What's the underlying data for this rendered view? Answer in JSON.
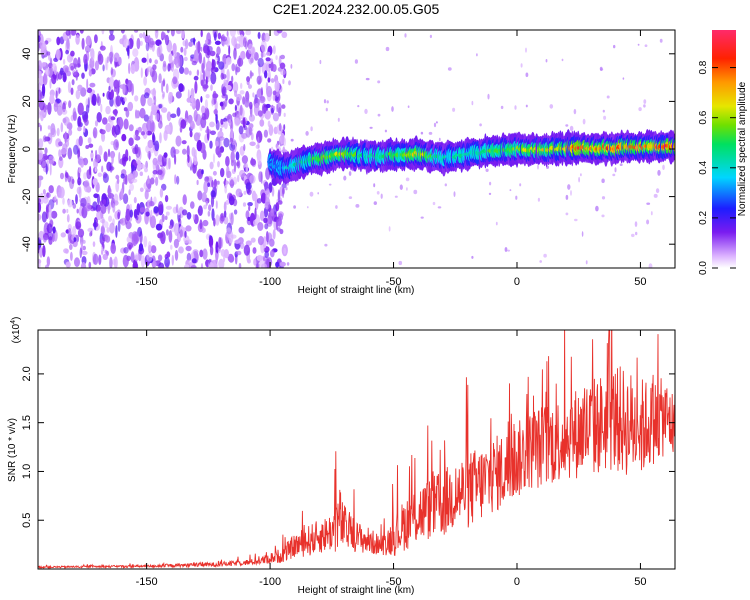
{
  "figure_title": "C2E1.2024.232.00.05.G05",
  "colorbar": {
    "label": "Normalized spectral amplitude",
    "ticks": [
      "0.0",
      "0.2",
      "0.4",
      "0.6",
      "0.8"
    ],
    "tick_values": [
      0.0,
      0.2,
      0.4,
      0.6,
      0.8
    ],
    "range": [
      0,
      0.95
    ]
  },
  "chart_data": [
    {
      "type": "heatmap",
      "title": "",
      "xlabel": "Height of straight line (km)",
      "ylabel": "Frequency (Hz)",
      "xlim": [
        -194,
        64
      ],
      "ylim": [
        -50,
        50
      ],
      "xticks": [
        -150,
        -100,
        -50,
        0,
        50
      ],
      "xtick_labels": [
        "-150",
        "-100",
        "-50",
        "0",
        "50"
      ],
      "yticks": [
        -40,
        -20,
        0,
        20,
        40
      ],
      "ytick_labels": [
        "-40",
        "-20",
        "0",
        "20",
        "40"
      ],
      "noise_region_x": [
        -194,
        -100
      ],
      "signal_track": {
        "x": [
          -100,
          -95,
          -90,
          -85,
          -80,
          -75,
          -70,
          -65,
          -60,
          -55,
          -50,
          -45,
          -40,
          -35,
          -30,
          -25,
          -20,
          -15,
          -10,
          -5,
          0,
          5,
          10,
          15,
          20,
          25,
          30,
          35,
          40,
          45,
          50,
          55,
          60,
          64
        ],
        "frequency": [
          -6,
          -8,
          -7,
          -5,
          -4,
          -3,
          -2,
          -2.5,
          -3,
          -3,
          -2.5,
          -2.5,
          -2,
          -3,
          -4,
          -3,
          -2,
          -1.5,
          -1,
          0,
          0,
          0,
          0,
          0.2,
          0.4,
          0.5,
          0.4,
          0.5,
          0.5,
          0.6,
          0.8,
          1,
          1,
          1
        ],
        "peak_amplitude": [
          0.3,
          0.35,
          0.45,
          0.5,
          0.6,
          0.6,
          0.65,
          0.55,
          0.45,
          0.5,
          0.55,
          0.6,
          0.75,
          0.55,
          0.45,
          0.45,
          0.45,
          0.5,
          0.55,
          0.55,
          0.6,
          0.65,
          0.7,
          0.65,
          0.7,
          0.95,
          0.75,
          0.8,
          0.85,
          0.75,
          0.8,
          0.75,
          0.9,
          0.8
        ]
      }
    },
    {
      "type": "line",
      "title": "",
      "xlabel": "Height of straight line (km)",
      "ylabel": "SNR (10 * v/v)",
      "y_multiplier_label": "(x10",
      "y_multiplier_exp": "4",
      "y_multiplier_close": ")",
      "xlim": [
        -194,
        64
      ],
      "ylim": [
        0,
        2.45
      ],
      "xticks": [
        -150,
        -100,
        -50,
        0,
        50
      ],
      "xtick_labels": [
        "-150",
        "-100",
        "-50",
        "0",
        "50"
      ],
      "yticks": [
        0.5,
        1.0,
        1.5,
        2.0
      ],
      "ytick_labels": [
        "0.5",
        "1.0",
        "1.5",
        "2.0"
      ],
      "series": [
        {
          "color": "#e8312b",
          "envelope_x": [
            -194,
            -150,
            -120,
            -105,
            -95,
            -90,
            -85,
            -80,
            -75,
            -72,
            -70,
            -65,
            -60,
            -55,
            -50,
            -45,
            -40,
            -35,
            -30,
            -25,
            -20,
            -15,
            -10,
            -5,
            0,
            5,
            10,
            15,
            20,
            25,
            30,
            35,
            40,
            45,
            50,
            55,
            60,
            64
          ],
          "envelope_y": [
            0.02,
            0.03,
            0.05,
            0.08,
            0.15,
            0.25,
            0.3,
            0.35,
            0.4,
            0.55,
            0.45,
            0.35,
            0.3,
            0.25,
            0.35,
            0.5,
            0.6,
            0.65,
            0.7,
            0.8,
            0.85,
            0.9,
            1.0,
            1.05,
            1.15,
            1.25,
            1.3,
            1.35,
            1.4,
            1.45,
            1.5,
            1.55,
            1.6,
            1.55,
            1.5,
            1.55,
            1.6,
            1.5
          ],
          "spread_y": [
            0.01,
            0.015,
            0.03,
            0.04,
            0.1,
            0.15,
            0.2,
            0.22,
            0.25,
            0.45,
            0.3,
            0.2,
            0.18,
            0.12,
            0.25,
            0.35,
            0.4,
            0.4,
            0.45,
            0.45,
            0.5,
            0.5,
            0.5,
            0.5,
            0.5,
            0.5,
            0.55,
            0.55,
            0.55,
            0.6,
            0.65,
            0.65,
            0.7,
            0.7,
            0.65,
            0.55,
            0.5,
            0.45
          ]
        }
      ]
    }
  ]
}
